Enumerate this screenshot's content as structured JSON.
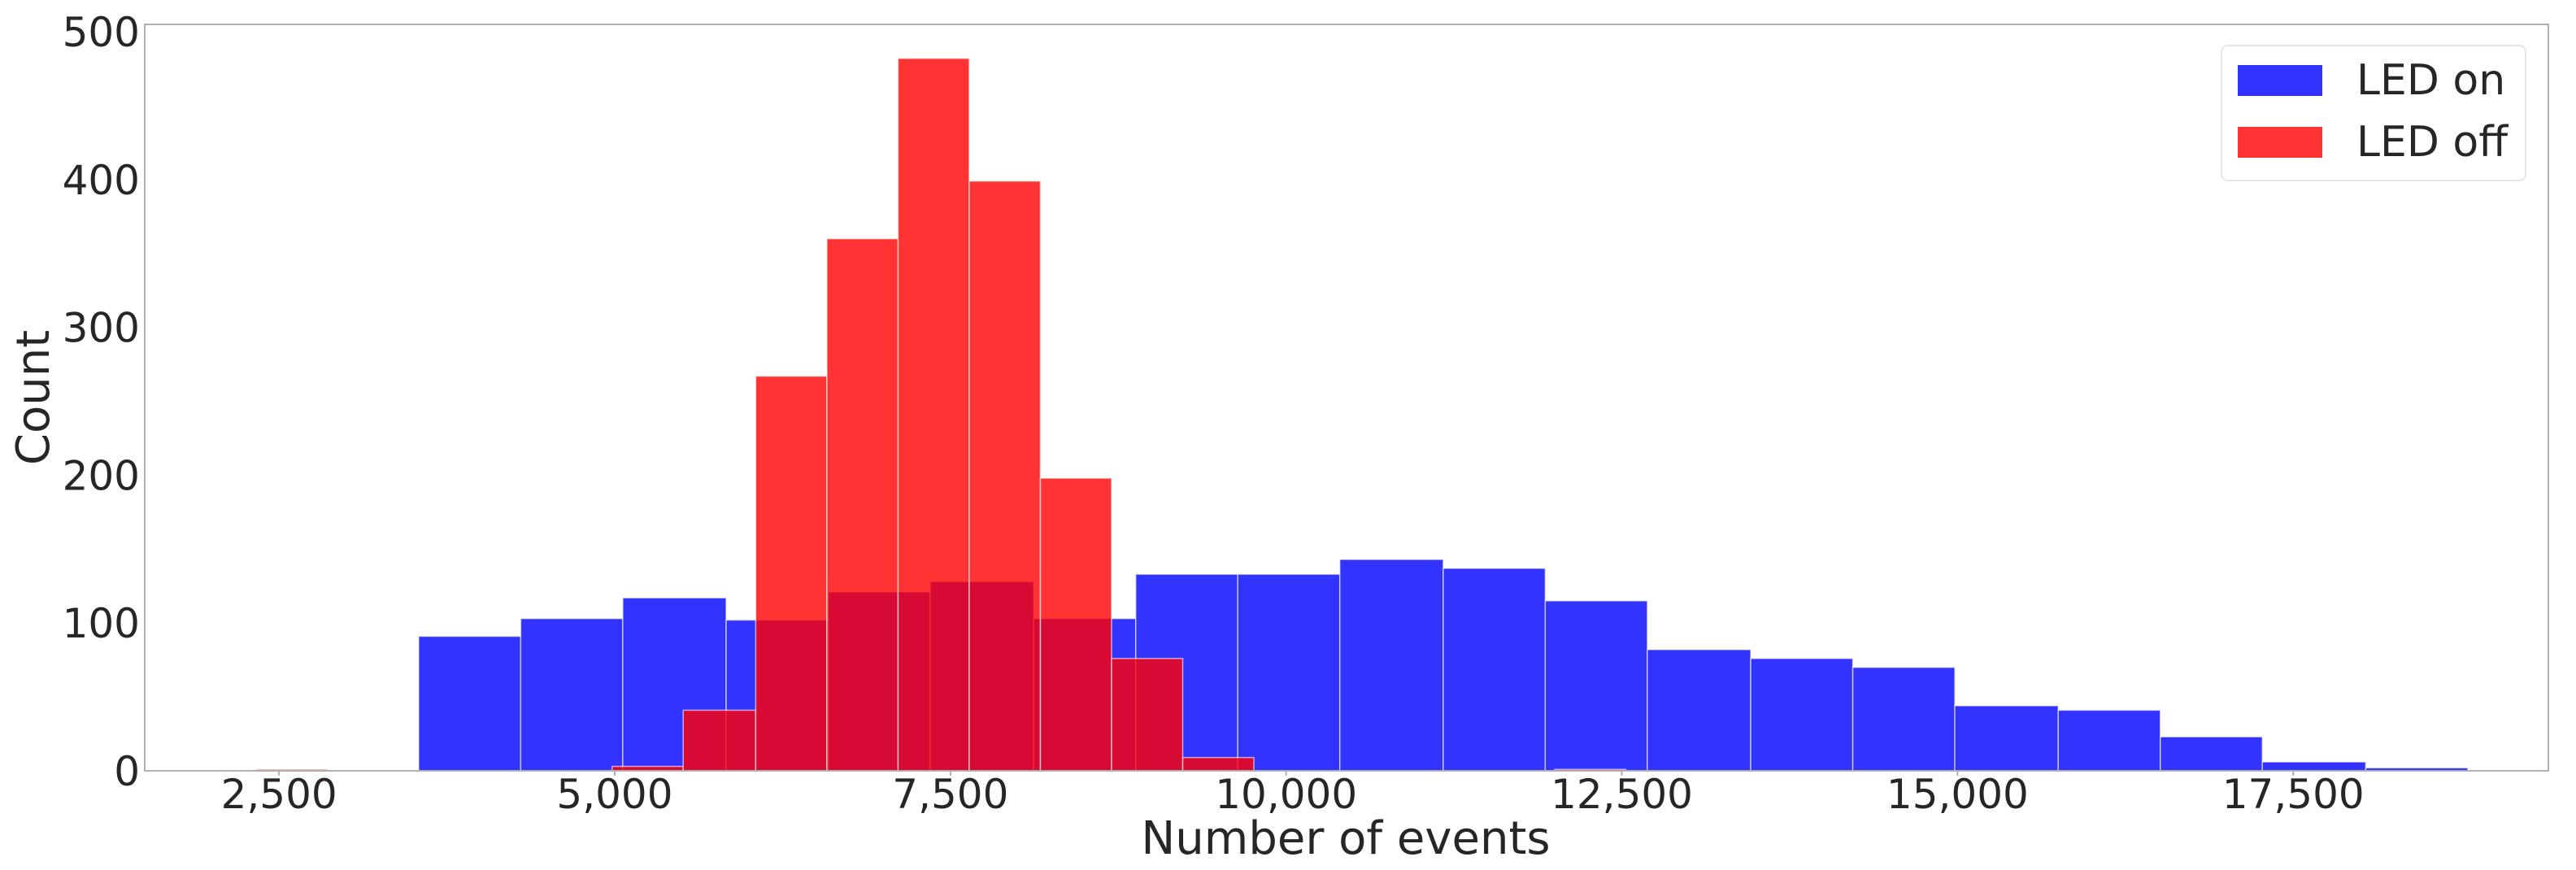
{
  "chart_data": {
    "type": "histogram",
    "title": "",
    "xlabel": "Number of events",
    "ylabel": "Count",
    "xlim": [
      1500,
      19400
    ],
    "ylim": [
      0,
      505
    ],
    "xticks": [
      2500,
      5000,
      7500,
      10000,
      12500,
      15000,
      17500
    ],
    "xtick_labels": [
      "2,500",
      "5,000",
      "7,500",
      "10,000",
      "12,500",
      "15,000",
      "17,500"
    ],
    "yticks": [
      0,
      100,
      200,
      300,
      400,
      500
    ],
    "ytick_labels": [
      "0",
      "100",
      "200",
      "300",
      "400",
      "500"
    ],
    "grid": false,
    "legend_position": "top-right",
    "series": [
      {
        "name": "LED on",
        "label": "LED on",
        "color": "#0000ff",
        "opacity": 0.8,
        "bins": [
          [
            3540,
            4300,
            91
          ],
          [
            4300,
            5060,
            103
          ],
          [
            5060,
            5830,
            117
          ],
          [
            5830,
            6590,
            102
          ],
          [
            6590,
            7350,
            121
          ],
          [
            7350,
            8120,
            128
          ],
          [
            8120,
            8880,
            103
          ],
          [
            8880,
            9640,
            133
          ],
          [
            9640,
            10400,
            133
          ],
          [
            10400,
            11170,
            143
          ],
          [
            11170,
            11930,
            137
          ],
          [
            11930,
            12690,
            115
          ],
          [
            12690,
            13460,
            82
          ],
          [
            13460,
            14220,
            76
          ],
          [
            14220,
            14980,
            70
          ],
          [
            14980,
            15750,
            44
          ],
          [
            15750,
            16510,
            41
          ],
          [
            16510,
            17270,
            23
          ],
          [
            17270,
            18040,
            6
          ],
          [
            18040,
            18800,
            2
          ]
        ]
      },
      {
        "name": "LED off",
        "label": "LED off",
        "color": "#ff0000",
        "opacity": 0.8,
        "bins": [
          [
            2330,
            2860,
            1
          ],
          [
            2860,
            3390,
            0
          ],
          [
            3390,
            3920,
            0
          ],
          [
            3920,
            4450,
            0
          ],
          [
            4450,
            4980,
            0
          ],
          [
            4980,
            5510,
            3
          ],
          [
            5510,
            6050,
            41
          ],
          [
            6050,
            6580,
            267
          ],
          [
            6580,
            7110,
            360
          ],
          [
            7110,
            7640,
            482
          ],
          [
            7640,
            8170,
            399
          ],
          [
            8170,
            8700,
            198
          ],
          [
            8700,
            9230,
            76
          ],
          [
            9230,
            9760,
            9
          ],
          [
            12000,
            12530,
            1
          ]
        ]
      }
    ]
  }
}
